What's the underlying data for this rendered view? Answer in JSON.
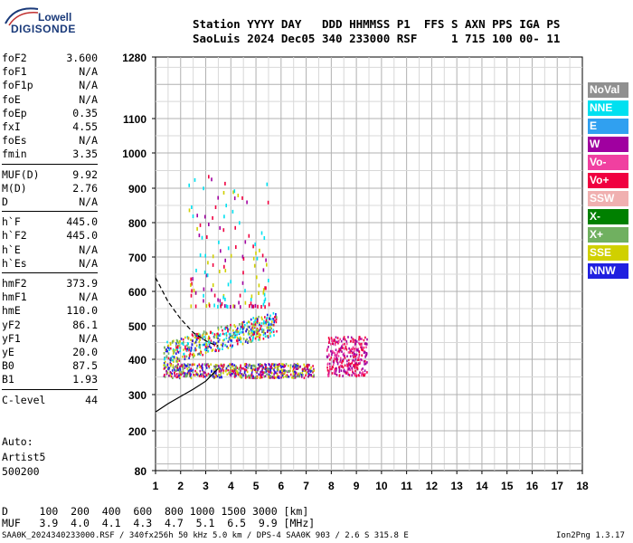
{
  "logo": {
    "top": "Lowell",
    "bottom": "DIGISONDE"
  },
  "header": {
    "line1": "Station YYYY DAY   DDD HHMMSS P1  FFS S AXN PPS IGA PS",
    "line2": "SaoLuis 2024 Dec05 340 233000 RSF     1 715 100 00- 11"
  },
  "params_group1": [
    {
      "label": "foF2",
      "value": "3.600"
    },
    {
      "label": "foF1",
      "value": "N/A"
    },
    {
      "label": "foF1p",
      "value": "N/A"
    },
    {
      "label": "foE",
      "value": "N/A"
    },
    {
      "label": "foEp",
      "value": "0.35"
    },
    {
      "label": "fxI",
      "value": "4.55"
    },
    {
      "label": "foEs",
      "value": "N/A"
    },
    {
      "label": "fmin",
      "value": "3.35"
    }
  ],
  "params_group2": [
    {
      "label": "MUF(D)",
      "value": "9.92"
    },
    {
      "label": "M(D)",
      "value": "2.76"
    },
    {
      "label": "D",
      "value": "N/A"
    }
  ],
  "params_group3": [
    {
      "label": "h`F",
      "value": "445.0"
    },
    {
      "label": "h`F2",
      "value": "445.0"
    },
    {
      "label": "h`E",
      "value": "N/A"
    },
    {
      "label": "h`Es",
      "value": "N/A"
    }
  ],
  "params_group4": [
    {
      "label": "hmF2",
      "value": "373.9"
    },
    {
      "label": "hmF1",
      "value": "N/A"
    },
    {
      "label": "hmE",
      "value": "110.0"
    },
    {
      "label": "yF2",
      "value": "86.1"
    },
    {
      "label": "yF1",
      "value": "N/A"
    },
    {
      "label": "yE",
      "value": "20.0"
    },
    {
      "label": "B0",
      "value": "87.5"
    },
    {
      "label": "B1",
      "value": "1.93"
    }
  ],
  "params_group5": [
    {
      "label": "C-level",
      "value": "44"
    }
  ],
  "scaler": [
    "Auto:",
    "Artist5",
    "500200"
  ],
  "legend": [
    {
      "label": "NoVal",
      "color": "#909090"
    },
    {
      "label": "NNE",
      "color": "#00e0f0"
    },
    {
      "label": "E",
      "color": "#30a0f0"
    },
    {
      "label": "W",
      "color": "#a000a0"
    },
    {
      "label": "Vo-",
      "color": "#f040a0"
    },
    {
      "label": "Vo+",
      "color": "#f00040"
    },
    {
      "label": "SSW",
      "color": "#f0b0b0"
    },
    {
      "label": "X-",
      "color": "#008000"
    },
    {
      "label": "X+",
      "color": "#70b060"
    },
    {
      "label": "SSE",
      "color": "#d0d000"
    },
    {
      "label": "NNW",
      "color": "#2020e0"
    }
  ],
  "chart_data": {
    "type": "scatter",
    "x_ticks": [
      "1",
      "2",
      "3",
      "4",
      "5",
      "6",
      "7",
      "8",
      "9",
      "10",
      "11",
      "12",
      "13",
      "14",
      "15",
      "16",
      "17",
      "18"
    ],
    "y_ticks": [
      "80",
      "200",
      "300",
      "400",
      "500",
      "600",
      "700",
      "800",
      "900",
      "1000",
      "1100",
      "1280"
    ],
    "xlim": [
      1,
      18
    ],
    "ylim": [
      80,
      1280
    ],
    "y_scale": "quasi-log",
    "grid": true,
    "regions": [
      {
        "name": "o-trace F2",
        "x": [
          1.3,
          5.8
        ],
        "y": [
          390,
          560
        ],
        "color_mix": [
          "SSE",
          "X+",
          "NNE",
          "Vo+",
          "NNW"
        ]
      },
      {
        "name": "low F trace",
        "x": [
          1.3,
          7.3
        ],
        "y": [
          340,
          400
        ],
        "color_mix": [
          "SSE",
          "X+",
          "W",
          "Vo+",
          "NNW"
        ]
      },
      {
        "name": "red cluster",
        "x": [
          7.8,
          9.4
        ],
        "y": [
          355,
          470
        ],
        "color_mix": [
          "Vo+",
          "Vo-",
          "W"
        ]
      },
      {
        "name": "scatter high",
        "x": [
          2.3,
          5.5
        ],
        "y": [
          560,
          950
        ],
        "color_mix": [
          "SSE",
          "W",
          "NNE",
          "Vo+"
        ]
      }
    ],
    "profile_solid": [
      [
        1.0,
        252
      ],
      [
        1.5,
        275
      ],
      [
        2.0,
        295
      ],
      [
        2.5,
        315
      ],
      [
        3.0,
        338
      ],
      [
        3.3,
        360
      ],
      [
        3.5,
        374
      ]
    ],
    "profile_dashed": [
      [
        1.0,
        640
      ],
      [
        1.5,
        570
      ],
      [
        2.0,
        520
      ],
      [
        2.5,
        480
      ],
      [
        3.0,
        455
      ],
      [
        3.3,
        445
      ],
      [
        3.5,
        440
      ]
    ]
  },
  "footer": {
    "d_line": "D     100  200  400  600  800 1000 1500 3000 [km]",
    "muf_line": "MUF   3.9  4.0  4.1  4.3  4.7  5.1  6.5  9.9 [MHz]",
    "file_line": "SAA0K_2024340233000.RSF / 340fx256h 50 kHz 5.0 km / DPS-4 SAA0K 903 / 2.6 S 315.8 E",
    "version": "Ion2Png 1.3.17"
  }
}
